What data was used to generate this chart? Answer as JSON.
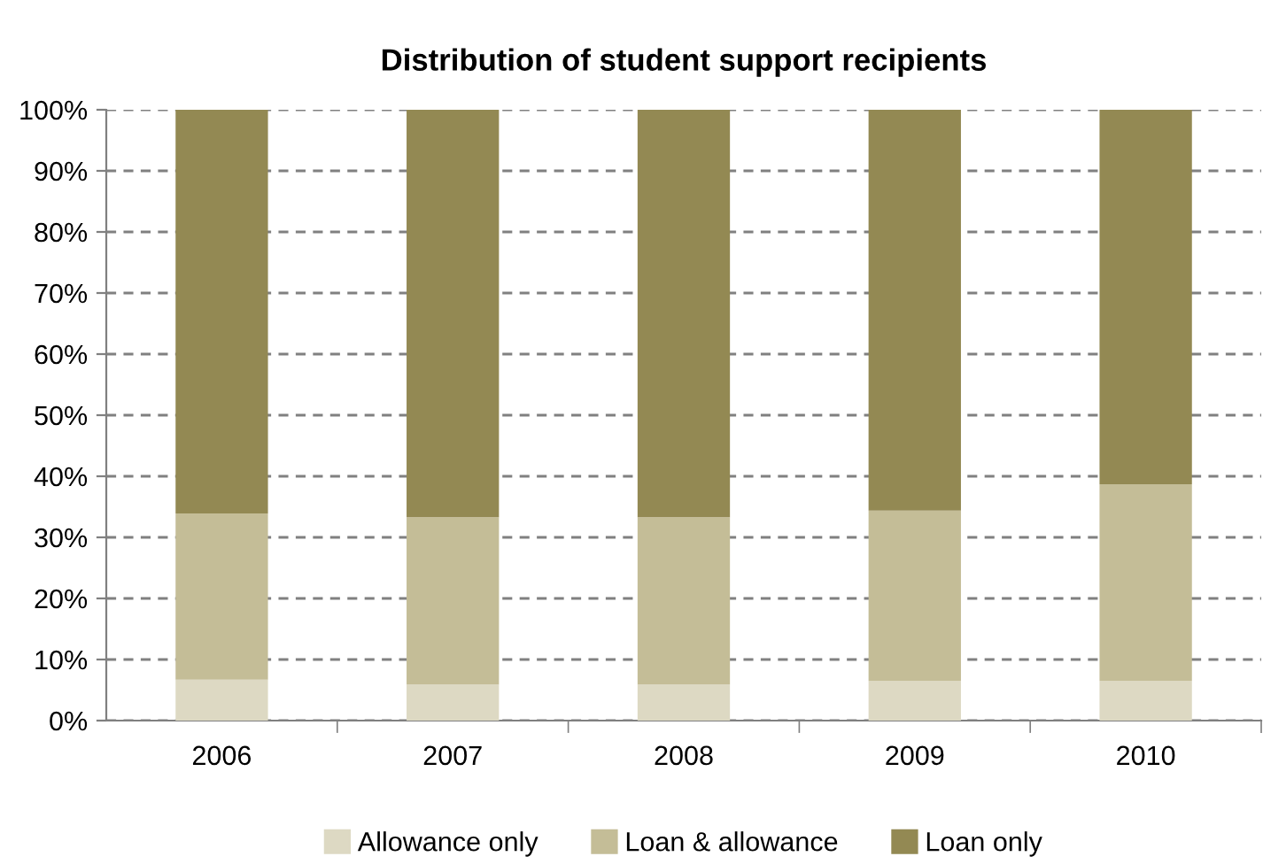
{
  "chart_data": {
    "type": "bar",
    "title": "Distribution of student support recipients",
    "categories": [
      "2006",
      "2007",
      "2008",
      "2009",
      "2010"
    ],
    "stacked": true,
    "series": [
      {
        "name": "Allowance only",
        "color": "#ddd9c3",
        "values": [
          6.7,
          5.9,
          5.9,
          6.5,
          6.5
        ]
      },
      {
        "name": "Loan & allowance",
        "color": "#c4bd97",
        "values": [
          27.2,
          27.4,
          27.4,
          27.9,
          32.2
        ]
      },
      {
        "name": "Loan only",
        "color": "#938953",
        "values": [
          66.1,
          66.7,
          66.7,
          65.6,
          61.3
        ]
      }
    ],
    "ylim": [
      0,
      100
    ],
    "yticks": [
      {
        "value": 0,
        "label": "0%"
      },
      {
        "value": 10,
        "label": "10%"
      },
      {
        "value": 20,
        "label": "20%"
      },
      {
        "value": 30,
        "label": "30%"
      },
      {
        "value": 40,
        "label": "40%"
      },
      {
        "value": 50,
        "label": "50%"
      },
      {
        "value": 60,
        "label": "60%"
      },
      {
        "value": 70,
        "label": "70%"
      },
      {
        "value": 80,
        "label": "80%"
      },
      {
        "value": 90,
        "label": "90%"
      },
      {
        "value": 100,
        "label": "100%"
      }
    ],
    "grid": "y",
    "legend": "bottom"
  }
}
